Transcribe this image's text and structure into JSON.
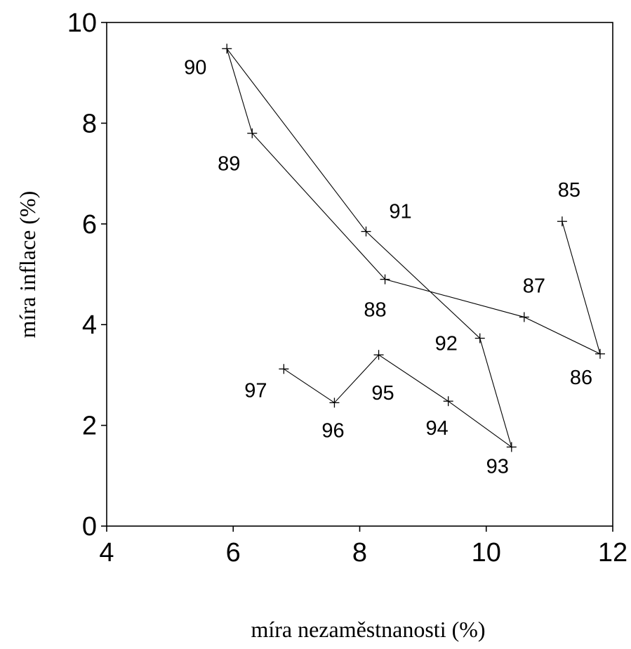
{
  "chart_data": {
    "type": "line",
    "title": "",
    "xlabel": "míra nezaměstnanosti (%)",
    "ylabel": "míra inflace (%)",
    "xlim": [
      4,
      12
    ],
    "ylim": [
      0,
      10
    ],
    "x_ticks": [
      "4",
      "6",
      "8",
      "10",
      "12"
    ],
    "y_ticks": [
      "0",
      "2",
      "4",
      "6",
      "8",
      "10"
    ],
    "grid": false,
    "legend": "none",
    "marker": "plus",
    "points": [
      {
        "label": "85",
        "x": 11.2,
        "y": 6.05
      },
      {
        "label": "86",
        "x": 11.8,
        "y": 3.42
      },
      {
        "label": "87",
        "x": 10.6,
        "y": 4.15
      },
      {
        "label": "88",
        "x": 8.4,
        "y": 4.9
      },
      {
        "label": "89",
        "x": 6.3,
        "y": 7.8
      },
      {
        "label": "90",
        "x": 5.9,
        "y": 9.48
      },
      {
        "label": "91",
        "x": 8.1,
        "y": 5.85
      },
      {
        "label": "92",
        "x": 9.9,
        "y": 3.73
      },
      {
        "label": "93",
        "x": 10.4,
        "y": 1.57
      },
      {
        "label": "94",
        "x": 9.4,
        "y": 2.48
      },
      {
        "label": "95",
        "x": 8.3,
        "y": 3.4
      },
      {
        "label": "96",
        "x": 7.6,
        "y": 2.45
      },
      {
        "label": "97",
        "x": 6.8,
        "y": 3.12
      }
    ]
  }
}
